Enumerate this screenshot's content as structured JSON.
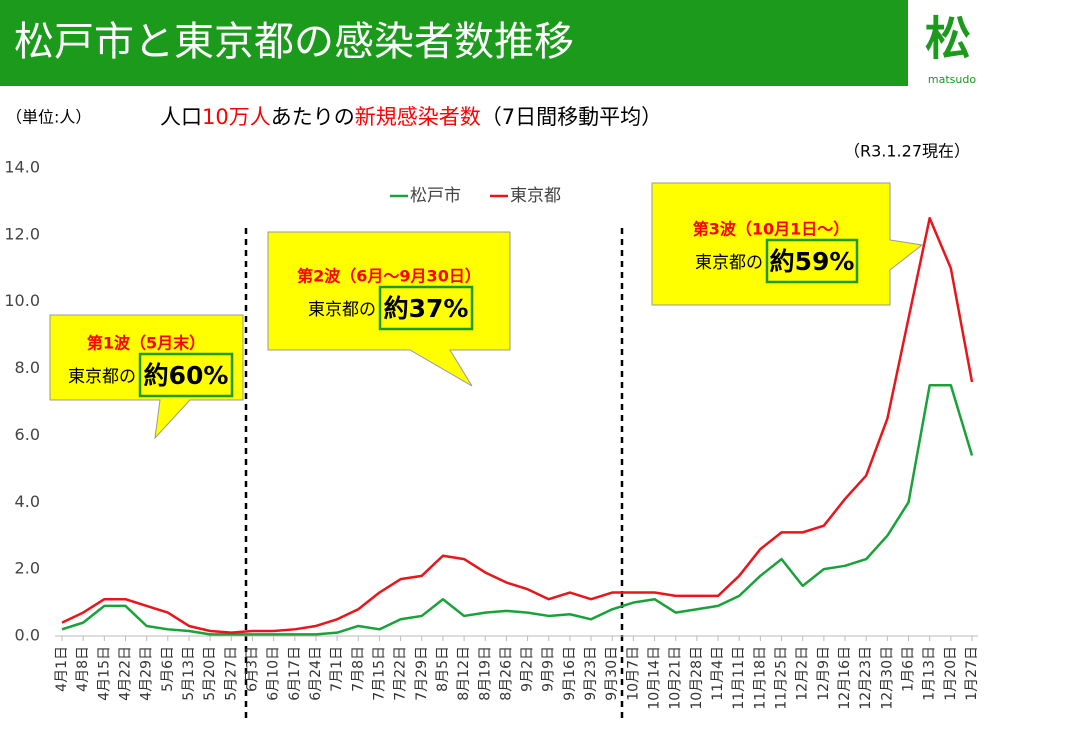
{
  "chart_data": {
    "type": "line",
    "title": "松戸市と東京都の感染者数推移",
    "logo": {
      "mark": "松",
      "text": "matsudo"
    },
    "unit_label": "（単位:人）",
    "subtitle_parts": [
      {
        "text": "人口"
      },
      {
        "text": "10万人",
        "color": "#ff0000"
      },
      {
        "text": "あたりの"
      },
      {
        "text": "新規感染者数",
        "color": "#ff0000"
      },
      {
        "text": "（7日間移動平均）"
      }
    ],
    "date_note": "（R3.1.27現在）",
    "categories": [
      "4月1日",
      "4月8日",
      "4月15日",
      "4月22日",
      "4月29日",
      "5月6日",
      "5月13日",
      "5月20日",
      "5月27日",
      "6月3日",
      "6月10日",
      "6月17日",
      "6月24日",
      "7月1日",
      "7月8日",
      "7月15日",
      "7月22日",
      "7月29日",
      "8月5日",
      "8月12日",
      "8月19日",
      "8月26日",
      "9月2日",
      "9月9日",
      "9月16日",
      "9月23日",
      "9月30日",
      "10月7日",
      "10月14日",
      "10月21日",
      "10月28日",
      "11月4日",
      "11月11日",
      "11月18日",
      "11月25日",
      "12月2日",
      "12月9日",
      "12月16日",
      "12月23日",
      "12月30日",
      "1月6日",
      "1月13日",
      "1月20日",
      "1月27日"
    ],
    "series": [
      {
        "name": "松戸市",
        "color": "#1aa23a",
        "values": [
          0.2,
          0.4,
          0.9,
          0.9,
          0.3,
          0.2,
          0.15,
          0.05,
          0.05,
          0.05,
          0.05,
          0.05,
          0.05,
          0.1,
          0.3,
          0.2,
          0.5,
          0.6,
          1.1,
          0.6,
          0.7,
          0.75,
          0.7,
          0.6,
          0.65,
          0.5,
          0.8,
          1.0,
          1.1,
          0.7,
          0.8,
          0.9,
          1.2,
          1.8,
          2.3,
          1.5,
          2.0,
          2.1,
          2.3,
          3.0,
          4.0,
          7.5,
          7.5,
          5.4
        ]
      },
      {
        "name": "東京都",
        "color": "#e8151b",
        "values": [
          0.4,
          0.7,
          1.1,
          1.1,
          0.9,
          0.7,
          0.3,
          0.15,
          0.1,
          0.15,
          0.15,
          0.2,
          0.3,
          0.5,
          0.8,
          1.3,
          1.7,
          1.8,
          2.4,
          2.3,
          1.9,
          1.6,
          1.4,
          1.1,
          1.3,
          1.1,
          1.3,
          1.3,
          1.3,
          1.2,
          1.2,
          1.2,
          1.8,
          2.6,
          3.1,
          3.1,
          3.3,
          4.1,
          4.8,
          6.5,
          9.5,
          12.5,
          11.0,
          7.6
        ]
      }
    ],
    "ylim": [
      0,
      14
    ],
    "yticks": [
      {
        "value": 0,
        "label": "0.0"
      },
      {
        "value": 2,
        "label": "2.0"
      },
      {
        "value": 4,
        "label": "4.0"
      },
      {
        "value": 6,
        "label": "6.0"
      },
      {
        "value": 8,
        "label": "8.0"
      },
      {
        "value": 10,
        "label": "10.0"
      },
      {
        "value": 12,
        "label": "12.0"
      },
      {
        "value": 14,
        "label": "14.0"
      }
    ],
    "grid": false,
    "legend": "top",
    "annotations": [
      {
        "title": "第1波（5月末）",
        "text": "東京都の",
        "highlight": "約60%"
      },
      {
        "title": "第2波（6月～9月30日）",
        "text": "東京都の",
        "highlight": "約37%"
      },
      {
        "title": "第3波（10月1日～）",
        "text": "東京都の",
        "highlight": "約59%"
      }
    ]
  }
}
